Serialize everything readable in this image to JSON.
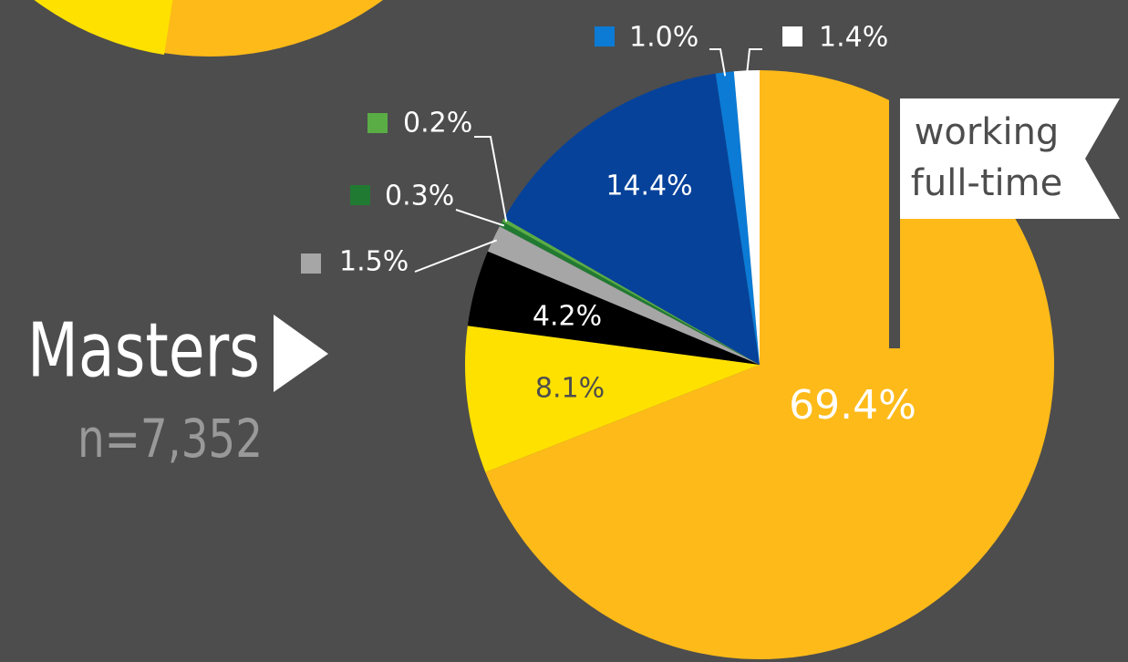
{
  "chart_data": {
    "type": "pie",
    "title": "Masters",
    "subtitle": "n=7,352",
    "annotation": [
      "working",
      "full-time"
    ],
    "categories": [
      null,
      null,
      null,
      null,
      null,
      null,
      null,
      null,
      null
    ],
    "values": [
      69.4,
      8.1,
      4.2,
      1.5,
      0.3,
      0.2,
      14.4,
      1.0,
      1.4
    ],
    "value_labels": [
      "69.4%",
      "8.1%",
      "4.2%",
      "1.5%",
      "0.3%",
      "0.2%",
      "14.4%",
      "1.0%",
      "1.4%"
    ],
    "colors": [
      "#fdba19",
      "#ffe100",
      "#000000",
      "#a6a6a6",
      "#217a32",
      "#5aad45",
      "#06429a",
      "#0b7bd6",
      "#ffffff"
    ]
  }
}
